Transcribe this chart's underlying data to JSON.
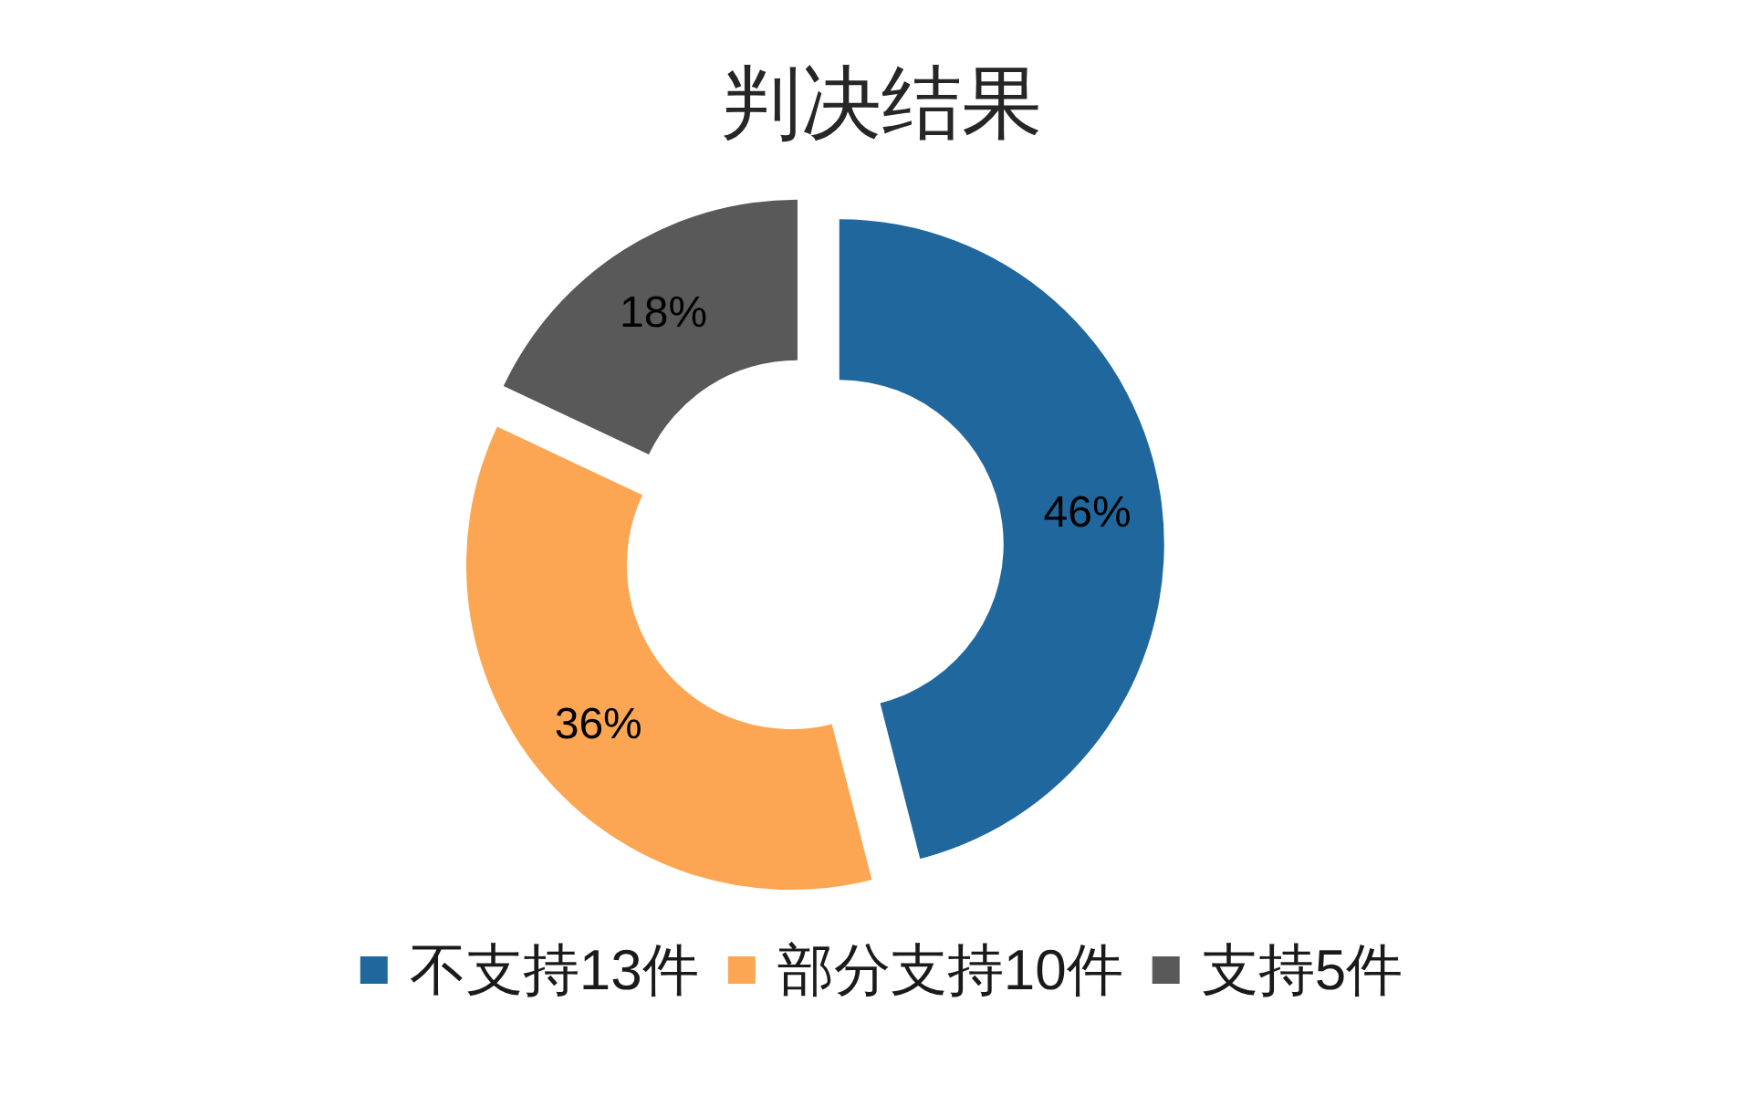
{
  "chart_data": {
    "type": "donut",
    "title": "判决结果",
    "categories": [
      "不支持13件",
      "部分支持10件",
      "支持5件"
    ],
    "values": [
      46,
      36,
      18
    ],
    "colors": [
      "#20679d",
      "#fca653",
      "#595959"
    ],
    "value_labels": [
      "46%",
      "36%",
      "18%"
    ],
    "legend": "bottom"
  }
}
